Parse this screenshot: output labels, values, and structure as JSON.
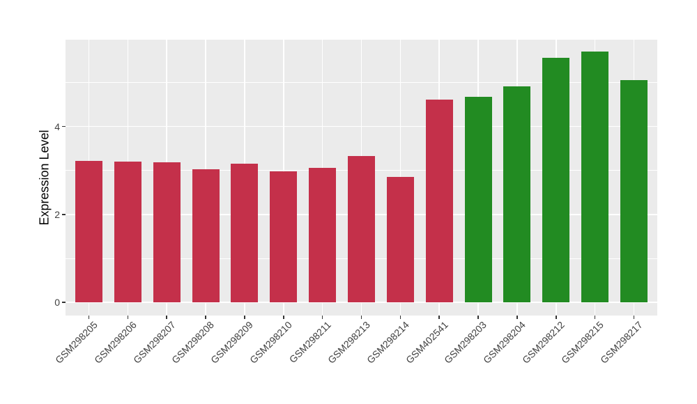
{
  "chart_data": {
    "type": "bar",
    "title": "",
    "xlabel": "",
    "ylabel": "Expression Level",
    "categories": [
      "GSM298205",
      "GSM298206",
      "GSM298207",
      "GSM298208",
      "GSM298209",
      "GSM298210",
      "GSM298211",
      "GSM298213",
      "GSM298214",
      "GSM402541",
      "GSM298203",
      "GSM298204",
      "GSM298212",
      "GSM298215",
      "GSM298217"
    ],
    "values": [
      3.21,
      3.2,
      3.18,
      3.03,
      3.15,
      2.98,
      3.06,
      3.33,
      2.86,
      4.61,
      4.68,
      4.92,
      5.57,
      5.7,
      5.06
    ],
    "bar_colors": [
      "#C4304A",
      "#C4304A",
      "#C4304A",
      "#C4304A",
      "#C4304A",
      "#C4304A",
      "#C4304A",
      "#C4304A",
      "#C4304A",
      "#C4304A",
      "#228B22",
      "#228B22",
      "#228B22",
      "#228B22",
      "#228B22"
    ],
    "group_colors": {
      "red": "#C4304A",
      "green": "#228B22"
    },
    "y_major_ticks": [
      0,
      2,
      4
    ],
    "y_minor_ticks": [
      1,
      3,
      5
    ],
    "ylim": [
      -0.3,
      5.97
    ],
    "x_tick_angle": -45,
    "grid": "on",
    "legend": "none",
    "panel_bg": "#EBEBEB",
    "grid_color": "#FFFFFF",
    "tick_color": "#333333",
    "axis_text_color": "#404040",
    "axis_title_color": "#000000"
  }
}
